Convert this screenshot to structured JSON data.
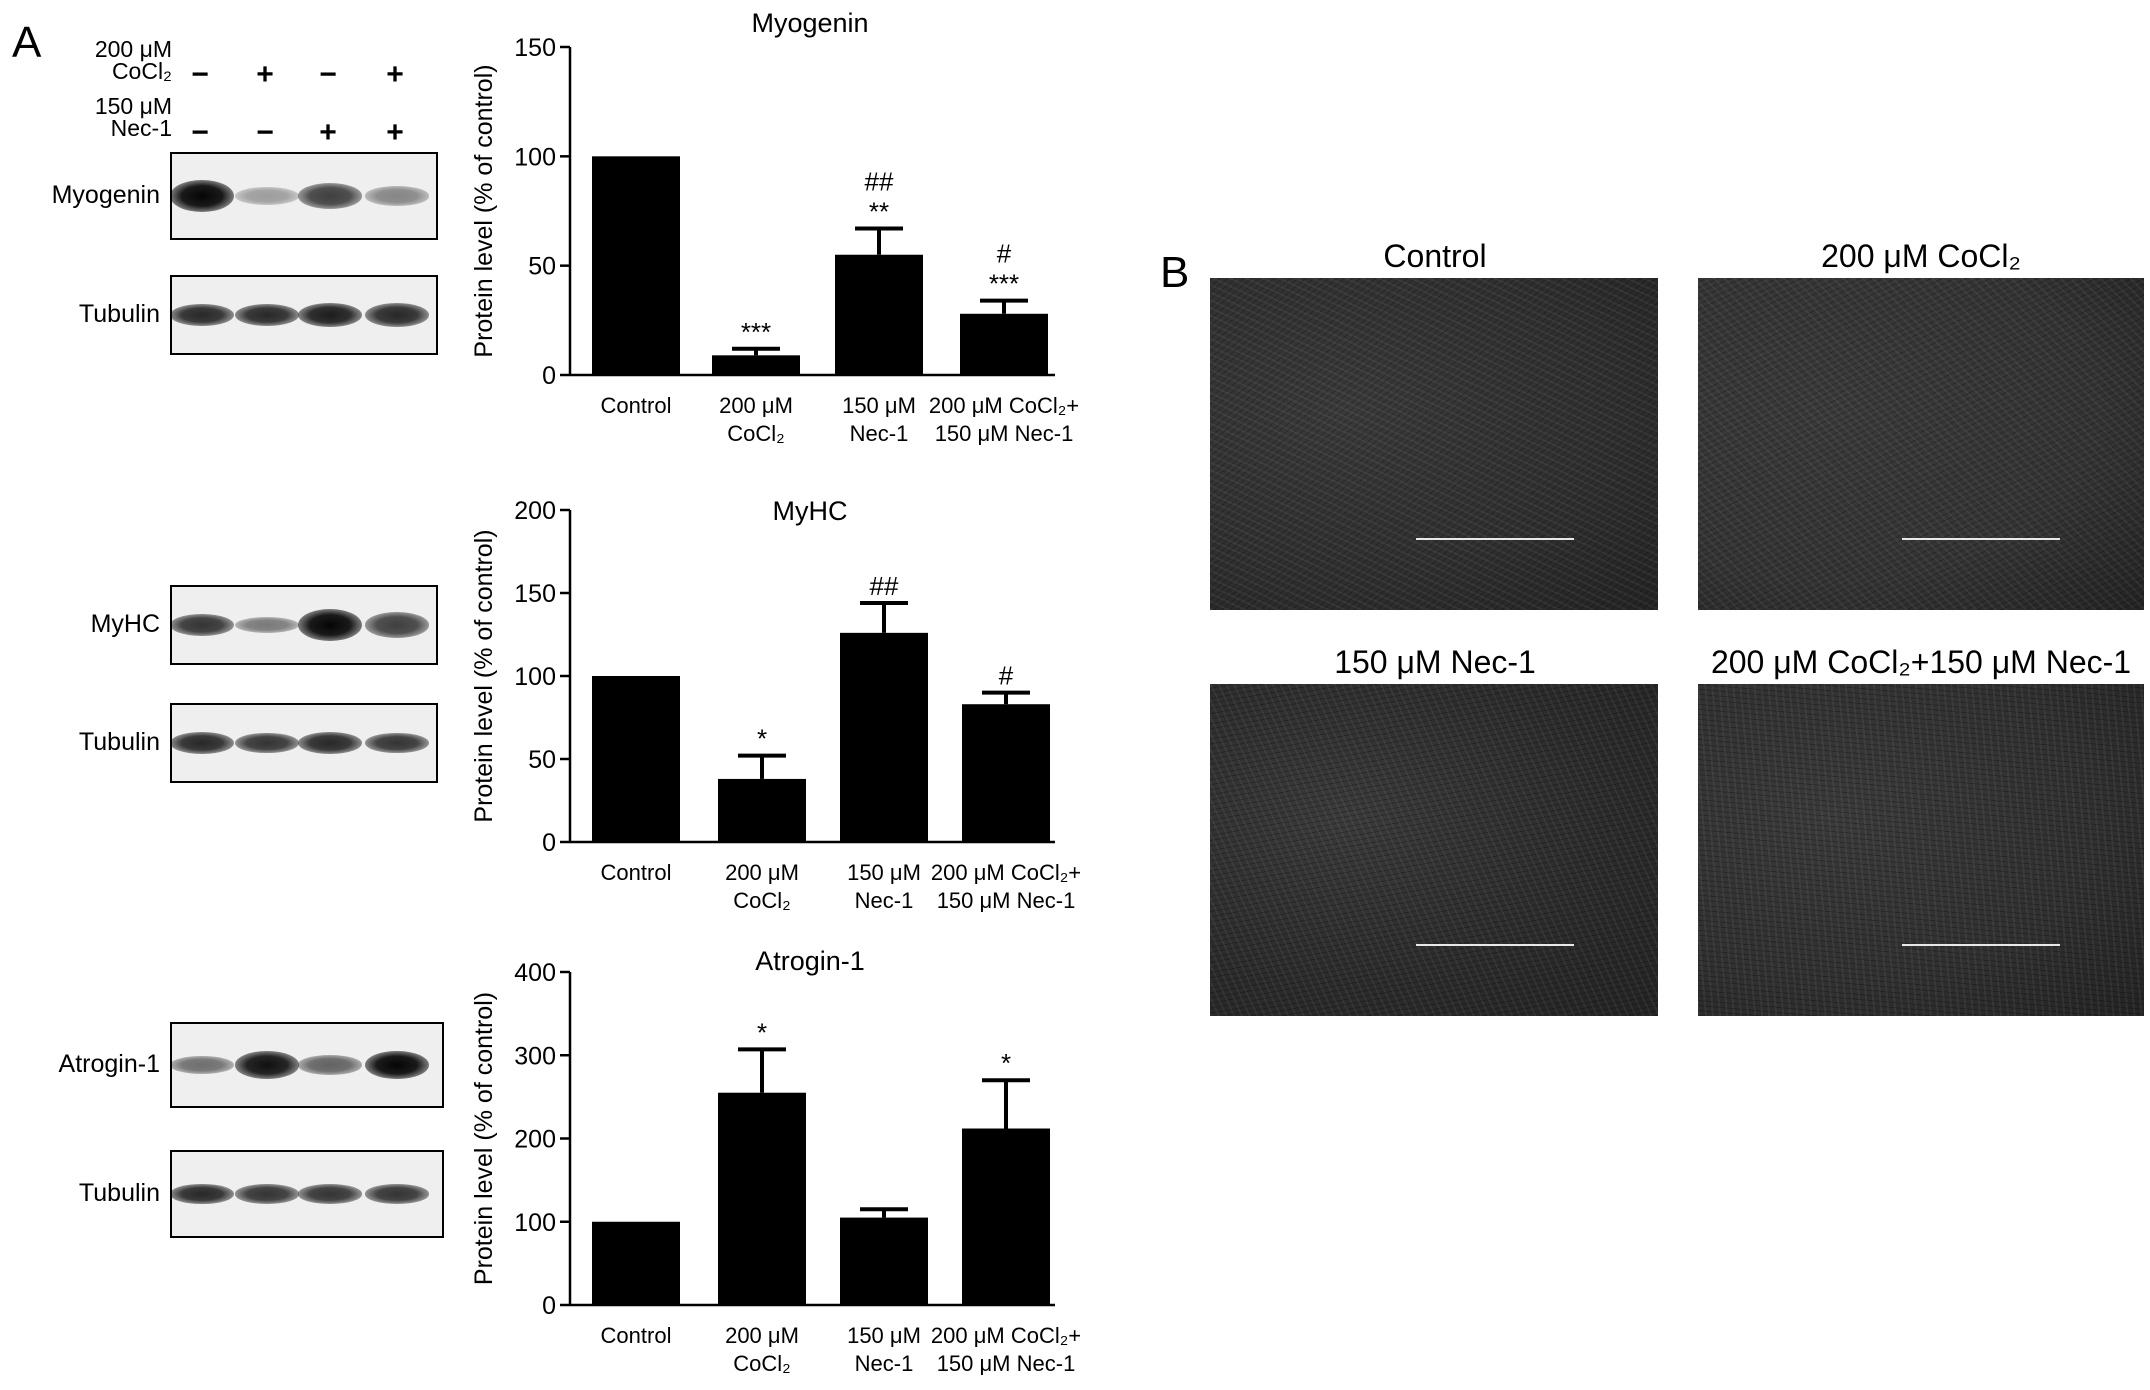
{
  "panel_a": {
    "letter": "A",
    "treatments": [
      {
        "dose": "200 μM",
        "agent": "CoCl₂",
        "signs": [
          "−",
          "+",
          "−",
          "+"
        ]
      },
      {
        "dose": "150 μM",
        "agent": "Nec-1",
        "signs": [
          "−",
          "−",
          "+",
          "+"
        ]
      }
    ],
    "blots": [
      {
        "label": "Myogenin",
        "intensity": [
          1.0,
          0.35,
          0.75,
          0.45
        ],
        "thickness": [
          1.0,
          0.55,
          0.8,
          0.6
        ]
      },
      {
        "label": "Tubulin",
        "intensity": [
          0.85,
          0.85,
          0.9,
          0.85
        ],
        "thickness": [
          0.7,
          0.7,
          0.75,
          0.75
        ]
      },
      {
        "label": "MyHC",
        "intensity": [
          0.8,
          0.5,
          1.0,
          0.75
        ],
        "thickness": [
          0.7,
          0.5,
          1.0,
          0.8
        ]
      },
      {
        "label": "Tubulin",
        "intensity": [
          0.85,
          0.8,
          0.85,
          0.8
        ],
        "thickness": [
          0.7,
          0.65,
          0.7,
          0.65
        ]
      },
      {
        "label": "Atrogin-1",
        "intensity": [
          0.55,
          0.95,
          0.6,
          1.0
        ],
        "thickness": [
          0.55,
          0.85,
          0.6,
          0.9
        ]
      },
      {
        "label": "Tubulin",
        "intensity": [
          0.85,
          0.8,
          0.8,
          0.8
        ],
        "thickness": [
          0.65,
          0.6,
          0.6,
          0.6
        ]
      }
    ]
  },
  "chart_data": [
    {
      "type": "bar",
      "title": "Myogenin",
      "ylabel": "Protein level (% of control)",
      "ylim": [
        0,
        150
      ],
      "yticks": [
        0,
        50,
        100,
        150
      ],
      "categories": [
        [
          "Control"
        ],
        [
          "200 μM",
          "CoCl₂"
        ],
        [
          "150 μM",
          "Nec-1"
        ],
        [
          "200 μM CoCl₂+",
          "150 μM Nec-1"
        ]
      ],
      "values": [
        100,
        9,
        55,
        28
      ],
      "errors": [
        0,
        3,
        12,
        6
      ],
      "annotations": [
        [
          "***"
        ],
        [
          "##",
          "**"
        ],
        [
          "#",
          "***"
        ]
      ],
      "annotation_index": [
        1,
        2,
        3
      ]
    },
    {
      "type": "bar",
      "title": "MyHC",
      "ylabel": "Protein level (% of control)",
      "ylim": [
        0,
        200
      ],
      "yticks": [
        0,
        50,
        100,
        150,
        200
      ],
      "categories": [
        [
          "Control"
        ],
        [
          "200 μM",
          "CoCl₂"
        ],
        [
          "150 μM",
          "Nec-1"
        ],
        [
          "200 μM CoCl₂+",
          "150 μM Nec-1"
        ]
      ],
      "values": [
        100,
        38,
        126,
        83
      ],
      "errors": [
        0,
        14,
        18,
        7
      ],
      "annotations": [
        [
          "*"
        ],
        [
          "##"
        ],
        [
          "#"
        ]
      ],
      "annotation_index": [
        1,
        2,
        3
      ]
    },
    {
      "type": "bar",
      "title": "Atrogin-1",
      "ylabel": "Protein level (% of control)",
      "ylim": [
        0,
        400
      ],
      "yticks": [
        0,
        100,
        200,
        300,
        400
      ],
      "categories": [
        [
          "Control"
        ],
        [
          "200 μM",
          "CoCl₂"
        ],
        [
          "150 μM",
          "Nec-1"
        ],
        [
          "200 μM CoCl₂+",
          "150 μM Nec-1"
        ]
      ],
      "values": [
        100,
        255,
        105,
        212
      ],
      "errors": [
        0,
        52,
        10,
        58
      ],
      "annotations": [
        [
          "*"
        ],
        [
          "*"
        ]
      ],
      "annotation_index": [
        1,
        3
      ]
    }
  ],
  "panel_b": {
    "letter": "B",
    "images": [
      {
        "title": "Control",
        "tone": "#2f2f2f"
      },
      {
        "title": "200 μM CoCl₂",
        "tone": "#343434"
      },
      {
        "title": "150 μM Nec-1",
        "tone": "#2b2b2b"
      },
      {
        "title": "200 μM CoCl₂+150 μM Nec-1",
        "tone": "#303030"
      }
    ]
  }
}
